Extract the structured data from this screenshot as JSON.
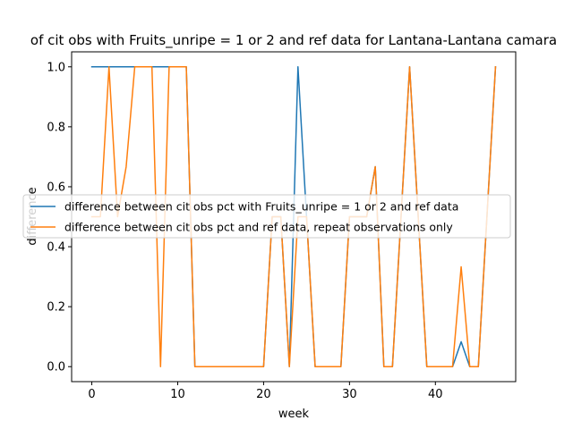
{
  "chart_data": {
    "type": "line",
    "title": "of cit obs with Fruits_unripe = 1 or 2 and ref data for Lantana-Lantana camara",
    "xlabel": "week",
    "ylabel": "difference",
    "xlim": [
      -2.35,
      49.35
    ],
    "ylim": [
      -0.05,
      1.05
    ],
    "xticks": [
      0,
      10,
      20,
      30,
      40
    ],
    "yticks": [
      0.0,
      0.2,
      0.4,
      0.6,
      0.8,
      1.0
    ],
    "ytick_labels": [
      "0.0",
      "0.2",
      "0.4",
      "0.6",
      "0.8",
      "1.0"
    ],
    "grid": false,
    "legend_position": "center-right",
    "series": [
      {
        "name": "difference between cit obs pct with Fruits_unripe = 1 or 2 and ref data",
        "color": "#1f77b4",
        "x": [
          0,
          1,
          2,
          3,
          4,
          5,
          6,
          7,
          8,
          9,
          10,
          11,
          12,
          13,
          14,
          15,
          16,
          17,
          18,
          19,
          20,
          21,
          22,
          23,
          24,
          25,
          26,
          27,
          28,
          29,
          30,
          31,
          32,
          33,
          34,
          35,
          36,
          37,
          38,
          39,
          40,
          41,
          42,
          43,
          44,
          45,
          46,
          47
        ],
        "y": [
          1,
          1,
          1,
          1,
          1,
          1,
          1,
          1,
          1,
          1,
          1,
          1,
          0,
          0,
          0,
          0,
          0,
          0,
          0,
          0,
          0,
          0.5,
          0.5,
          0,
          1,
          0.5,
          0,
          0,
          0,
          0,
          0.5,
          0.5,
          0.5,
          0.667,
          0,
          0,
          0.5,
          1,
          0.5,
          0,
          0,
          0,
          0,
          0.083,
          0,
          0,
          0.5,
          1
        ]
      },
      {
        "name": "difference between cit obs pct and ref data, repeat observations only",
        "color": "#ff7f0e",
        "x": [
          0,
          1,
          2,
          3,
          4,
          5,
          6,
          7,
          8,
          9,
          10,
          11,
          12,
          13,
          14,
          15,
          16,
          17,
          18,
          19,
          20,
          21,
          22,
          23,
          24,
          25,
          26,
          27,
          28,
          29,
          30,
          31,
          32,
          33,
          34,
          35,
          36,
          37,
          38,
          39,
          40,
          41,
          42,
          43,
          44,
          45,
          46,
          47
        ],
        "y": [
          0.5,
          0.5,
          1,
          0.5,
          0.667,
          1,
          1,
          1,
          0,
          1,
          1,
          1,
          0,
          0,
          0,
          0,
          0,
          0,
          0,
          0,
          0,
          0.5,
          0.5,
          0,
          0.5,
          0.5,
          0,
          0,
          0,
          0,
          0.5,
          0.5,
          0.5,
          0.667,
          0,
          0,
          0.5,
          1,
          0.5,
          0,
          0,
          0,
          0,
          0.333,
          0,
          0,
          0.5,
          1
        ]
      }
    ]
  }
}
